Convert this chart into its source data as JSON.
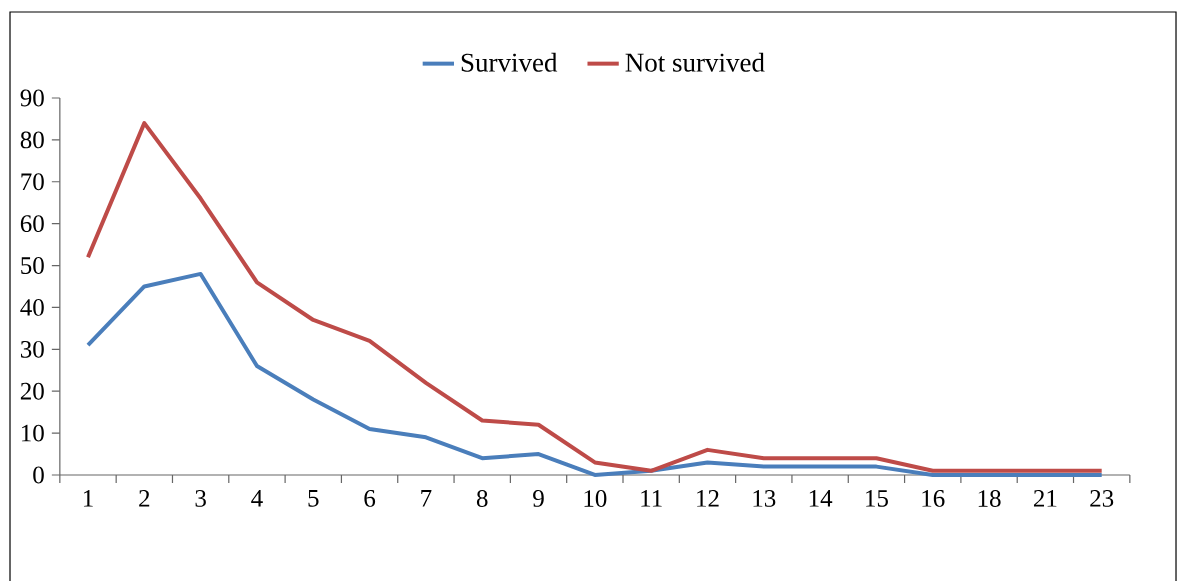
{
  "chart_data": {
    "type": "line",
    "categories": [
      "1",
      "2",
      "3",
      "4",
      "5",
      "6",
      "7",
      "8",
      "9",
      "10",
      "11",
      "12",
      "13",
      "14",
      "15",
      "16",
      "18",
      "21",
      "23"
    ],
    "series": [
      {
        "name": "Survived",
        "color": "#4a7ebb",
        "values": [
          31,
          45,
          48,
          26,
          18,
          11,
          9,
          4,
          5,
          0,
          1,
          3,
          2,
          2,
          2,
          0,
          0,
          0,
          0
        ]
      },
      {
        "name": "Not survived",
        "color": "#be4b48",
        "values": [
          52,
          84,
          66,
          46,
          37,
          32,
          22,
          13,
          12,
          3,
          1,
          6,
          4,
          4,
          4,
          1,
          1,
          1,
          1
        ]
      }
    ],
    "ylim": [
      0,
      90
    ],
    "yticks": [
      0,
      10,
      20,
      30,
      40,
      50,
      60,
      70,
      80,
      90
    ],
    "legend": "top",
    "marker": "none",
    "line_style": "solid"
  }
}
